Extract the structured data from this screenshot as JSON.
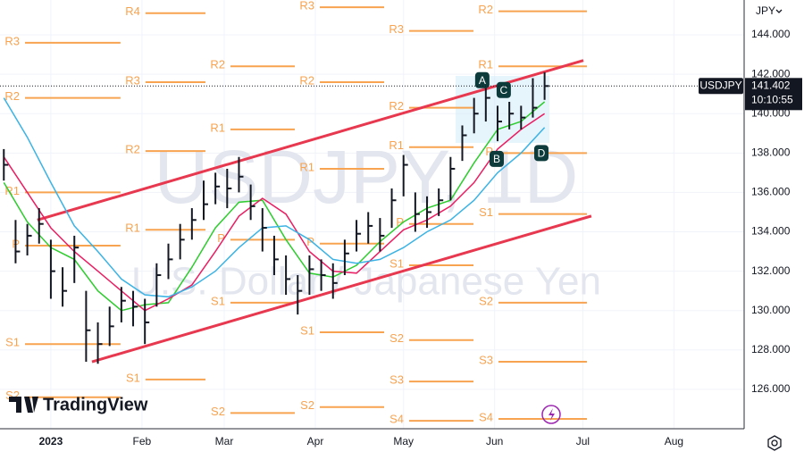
{
  "chart_data": {
    "type": "ohlc",
    "symbol": "USDJPY",
    "currency": "JPY",
    "watermark": "USDJPY, 1D",
    "subtitle": "U.S. Dollar / Japanese Yen",
    "brand": "TradingView",
    "last_price": 141.402,
    "countdown": "10:10:55",
    "grid": true,
    "xlim": [
      -17.3,
      235.9
    ],
    "ylim": [
      124.0,
      145.77
    ],
    "xticks": [
      {
        "value": 0,
        "label": "2023"
      },
      {
        "value": 31,
        "label": "Feb"
      },
      {
        "value": 59,
        "label": "Mar"
      },
      {
        "value": 90,
        "label": "Apr"
      },
      {
        "value": 120,
        "label": "May"
      },
      {
        "value": 151,
        "label": "Jun"
      },
      {
        "value": 181,
        "label": "Jul"
      },
      {
        "value": 212,
        "label": "Aug"
      }
    ],
    "yticks": [
      {
        "value": 126,
        "label": "126.000"
      },
      {
        "value": 128,
        "label": "128.000"
      },
      {
        "value": 130,
        "label": "130.000"
      },
      {
        "value": 132,
        "label": "132.000"
      },
      {
        "value": 134,
        "label": "134.000"
      },
      {
        "value": 136,
        "label": "136.000"
      },
      {
        "value": 138,
        "label": "138.000"
      },
      {
        "value": 140,
        "label": "140.000"
      },
      {
        "value": 142,
        "label": "142.000"
      },
      {
        "value": 144,
        "label": "144.000"
      }
    ],
    "bars": {
      "color": "#131722",
      "x": [
        -16,
        -12,
        -8,
        -4,
        0,
        4,
        8,
        12,
        16,
        20,
        24,
        28,
        32,
        36,
        40,
        44,
        48,
        52,
        56,
        60,
        64,
        68,
        72,
        76,
        80,
        84,
        88,
        92,
        96,
        100,
        104,
        108,
        112,
        116,
        120,
        124,
        128,
        132,
        136,
        140,
        144,
        148,
        152,
        156,
        160,
        164,
        168
      ],
      "high": [
        138.2,
        134.6,
        134.4,
        135.2,
        133.6,
        132.2,
        133.8,
        131.0,
        129.4,
        130.2,
        131.2,
        131.0,
        130.6,
        132.4,
        133.4,
        134.4,
        135.2,
        136.6,
        137.0,
        137.2,
        137.8,
        136.4,
        135.2,
        133.8,
        132.8,
        131.8,
        132.8,
        132.6,
        132.4,
        133.6,
        134.6,
        135.0,
        134.7,
        136.2,
        137.9,
        136.0,
        135.8,
        136.2,
        137.8,
        139.4,
        140.8,
        141.4,
        140.4,
        140.6,
        140.4,
        141.8,
        142.1
      ],
      "low": [
        136.6,
        132.4,
        132.8,
        133.4,
        130.6,
        130.2,
        131.4,
        127.4,
        127.3,
        128.2,
        129.4,
        129.2,
        128.3,
        130.2,
        131.6,
        132.6,
        133.6,
        134.6,
        135.4,
        135.2,
        136.0,
        134.6,
        133.0,
        131.8,
        130.8,
        129.8,
        130.8,
        131.0,
        130.6,
        131.8,
        133.0,
        133.4,
        133.0,
        134.2,
        135.8,
        134.0,
        134.2,
        134.8,
        135.6,
        137.6,
        139.0,
        139.6,
        138.6,
        139.2,
        139.2,
        139.8,
        140.7
      ],
      "close": [
        137.4,
        133.0,
        133.8,
        134.4,
        132.0,
        131.0,
        133.2,
        129.0,
        128.3,
        129.2,
        130.5,
        130.2,
        129.4,
        131.8,
        132.6,
        133.6,
        134.6,
        135.4,
        136.3,
        136.2,
        136.8,
        135.3,
        134.2,
        132.6,
        131.6,
        131.0,
        132.1,
        131.8,
        131.4,
        132.9,
        133.9,
        134.3,
        133.8,
        135.6,
        137.4,
        134.9,
        135.0,
        135.6,
        137.2,
        138.9,
        140.0,
        140.8,
        139.6,
        140.0,
        139.8,
        140.3,
        141.402
      ]
    },
    "moving_averages": [
      {
        "color": "#2ecc2e",
        "x": [
          -16,
          -8,
          0,
          8,
          16,
          24,
          32,
          40,
          48,
          56,
          64,
          72,
          80,
          88,
          96,
          104,
          112,
          120,
          128,
          136,
          144,
          152,
          160,
          168
        ],
        "values": [
          136.5,
          134.5,
          133.2,
          132.6,
          131.0,
          130.0,
          130.3,
          130.4,
          132.2,
          134.2,
          135.5,
          135.6,
          133.6,
          131.9,
          131.7,
          132.3,
          133.5,
          134.5,
          135.2,
          135.6,
          137.5,
          139.2,
          139.6,
          140.6
        ]
      },
      {
        "color": "#e91e63",
        "x": [
          -16,
          -8,
          0,
          8,
          16,
          24,
          32,
          40,
          48,
          56,
          64,
          72,
          80,
          88,
          96,
          104,
          112,
          120,
          128,
          136,
          144,
          152,
          160,
          168
        ],
        "values": [
          137.8,
          136.0,
          134.2,
          133.0,
          132.0,
          131.0,
          130.0,
          130.6,
          131.3,
          133.0,
          134.8,
          135.7,
          134.9,
          133.0,
          132.0,
          131.9,
          133.0,
          134.1,
          134.6,
          135.3,
          136.5,
          138.2,
          139.2,
          140.0
        ]
      },
      {
        "color": "#3bb3e4",
        "x": [
          -16,
          -8,
          0,
          8,
          16,
          24,
          32,
          40,
          48,
          56,
          64,
          72,
          80,
          88,
          96,
          104,
          112,
          120,
          128,
          136,
          144,
          152,
          160,
          168
        ],
        "values": [
          140.8,
          138.8,
          136.5,
          134.3,
          133.0,
          131.6,
          130.8,
          130.7,
          131.2,
          132.0,
          133.2,
          134.2,
          134.3,
          133.6,
          132.6,
          132.4,
          132.6,
          133.2,
          134.0,
          134.6,
          135.6,
          137.0,
          138.0,
          139.3
        ]
      }
    ],
    "trendlines": [
      {
        "color": "#e8384f",
        "x": [
          -4.6,
          181.2
        ],
        "values": [
          134.6,
          142.7
        ]
      },
      {
        "color": "#e8384f",
        "x": [
          14.0,
          183.9
        ],
        "values": [
          127.4,
          134.8
        ]
      }
    ],
    "pivot_color": "#f7a350",
    "pivots": [
      {
        "x": [
          -17.3,
          23.7
        ],
        "levels": [
          {
            "label": "R3",
            "value": 143.6
          },
          {
            "label": "R2",
            "value": 140.8
          },
          {
            "label": "R1",
            "value": 136.0
          },
          {
            "label": "P",
            "value": 133.3
          },
          {
            "label": "S1",
            "value": 128.3
          },
          {
            "label": "S2",
            "value": 125.6
          }
        ]
      },
      {
        "x": [
          23.7,
          52.6
        ],
        "levels": [
          {
            "label": "R4",
            "value": 145.1
          },
          {
            "label": "R3",
            "value": 141.6
          },
          {
            "label": "R2",
            "value": 138.1
          },
          {
            "label": "R1",
            "value": 134.1
          },
          {
            "label": "S1",
            "value": 126.5
          }
        ]
      },
      {
        "x": [
          52.6,
          83.0
        ],
        "levels": [
          {
            "label": "R2",
            "value": 142.4
          },
          {
            "label": "R1",
            "value": 139.2
          },
          {
            "label": "P",
            "value": 133.6
          },
          {
            "label": "S1",
            "value": 130.4
          },
          {
            "label": "S2",
            "value": 124.8
          }
        ]
      },
      {
        "x": [
          83.0,
          113.4
        ],
        "levels": [
          {
            "label": "R3",
            "value": 145.4
          },
          {
            "label": "R2",
            "value": 141.6
          },
          {
            "label": "R1",
            "value": 137.2
          },
          {
            "label": "P",
            "value": 133.4
          },
          {
            "label": "S1",
            "value": 128.9
          },
          {
            "label": "S2",
            "value": 125.1
          }
        ]
      },
      {
        "x": [
          113.4,
          143.8
        ],
        "levels": [
          {
            "label": "R3",
            "value": 144.2
          },
          {
            "label": "R2",
            "value": 140.3
          },
          {
            "label": "R1",
            "value": 138.3
          },
          {
            "label": "P",
            "value": 134.4
          },
          {
            "label": "S1",
            "value": 132.3
          },
          {
            "label": "S2",
            "value": 128.5
          },
          {
            "label": "S3",
            "value": 126.4
          },
          {
            "label": "S4",
            "value": 124.4
          }
        ]
      },
      {
        "x": [
          143.8,
          182.4
        ],
        "levels": [
          {
            "label": "R2",
            "value": 145.2
          },
          {
            "label": "R1",
            "value": 142.4
          },
          {
            "label": "P",
            "value": 138.0
          },
          {
            "label": "S1",
            "value": 134.9
          },
          {
            "label": "S2",
            "value": 130.4
          },
          {
            "label": "S3",
            "value": 127.4
          },
          {
            "label": "S4",
            "value": 124.5
          }
        ]
      }
    ],
    "pattern_points": [
      {
        "label": "A",
        "x": 146.8,
        "value": 141.7
      },
      {
        "label": "B",
        "x": 151.7,
        "value": 137.7
      },
      {
        "label": "C",
        "x": 154.1,
        "value": 141.2
      },
      {
        "label": "D",
        "x": 166.9,
        "value": 138.0
      }
    ]
  }
}
